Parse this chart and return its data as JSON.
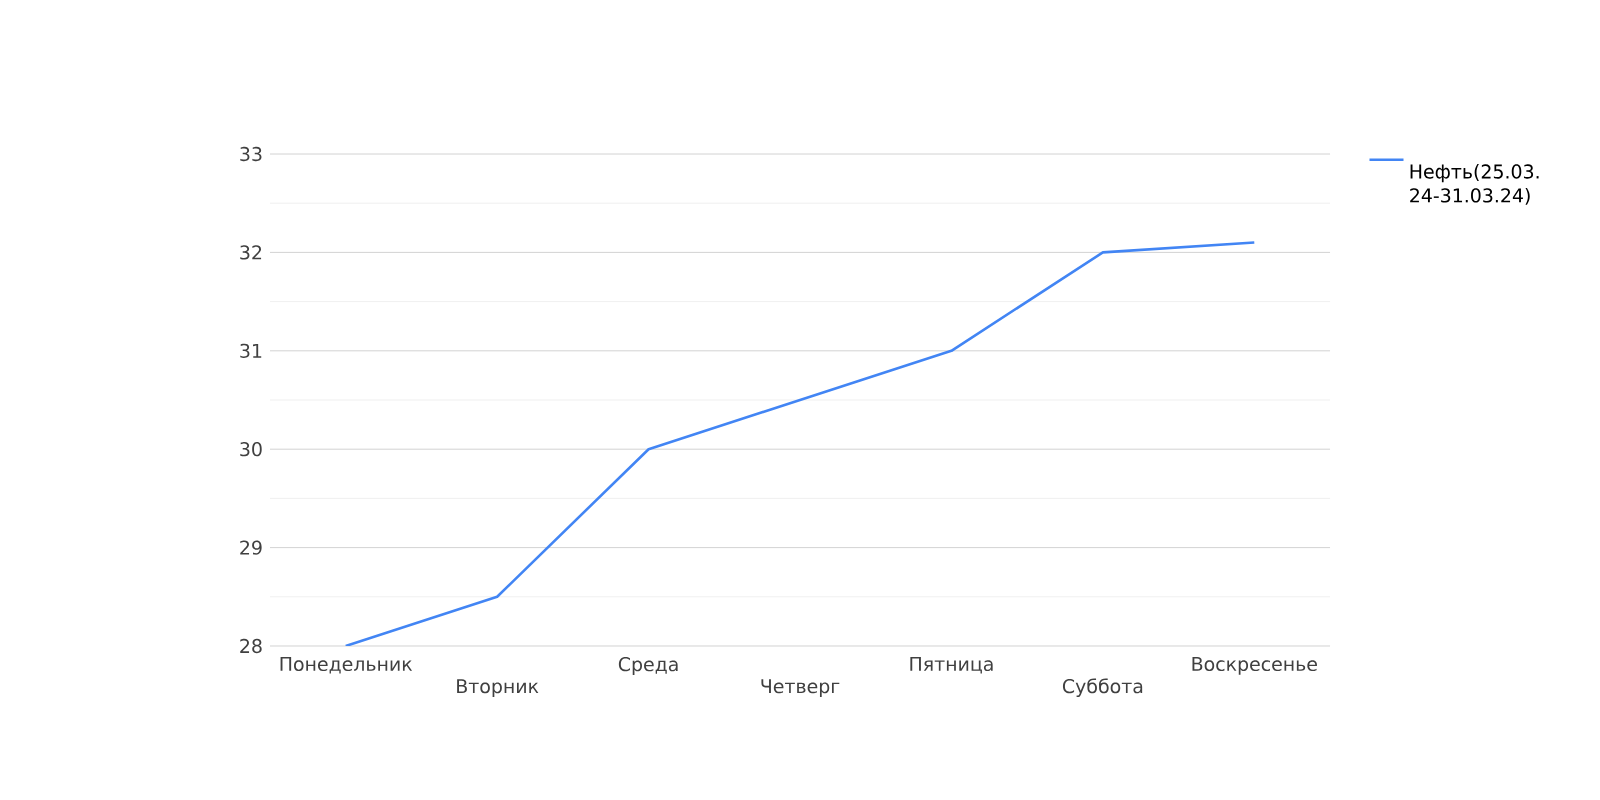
{
  "chart_data": {
    "type": "line",
    "categories": [
      "Понедельник",
      "Вторник",
      "Среда",
      "Четверг",
      "Пятница",
      "Суббота",
      "Воскресенье"
    ],
    "series": [
      {
        "name": "Нефть(25.03.24-31.03.24)",
        "color": "#4285f4",
        "values": [
          28,
          28.5,
          30,
          30.5,
          31,
          32,
          32.1
        ]
      }
    ],
    "ylim": [
      28,
      33
    ],
    "yticks": [
      28,
      {
        "value": 28.5,
        "label": null
      },
      29,
      {
        "value": 29.5,
        "label": null
      },
      30,
      {
        "value": 30.5,
        "label": null
      },
      31,
      {
        "value": 31.5,
        "label": null
      },
      32,
      {
        "value": 32.5,
        "label": null
      },
      33
    ],
    "grid": "y",
    "legend": "right",
    "marker": "none",
    "line_style": "solid"
  }
}
